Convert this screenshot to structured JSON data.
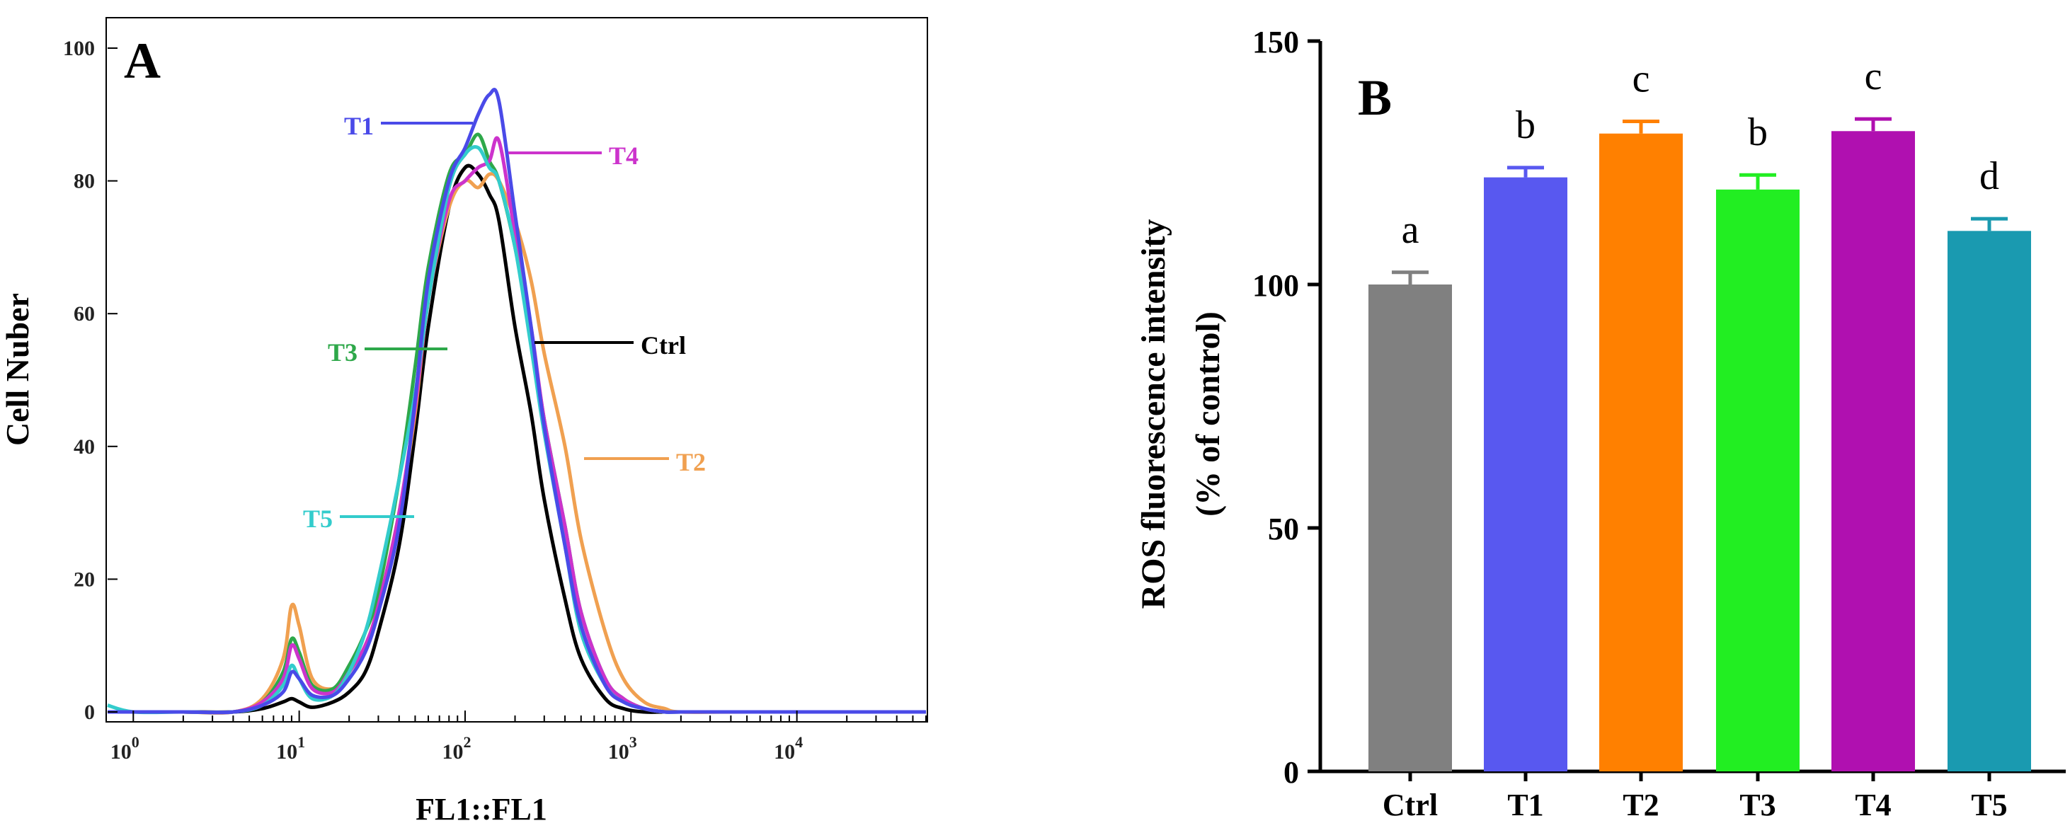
{
  "chart_data": [
    {
      "panel": "A",
      "type": "line",
      "xlabel": "FL1::FL1",
      "ylabel": "Cell Nuber",
      "x_scale": "log",
      "xlim": [
        0.7,
        60000
      ],
      "ylim": [
        0,
        100
      ],
      "x_ticks": [
        {
          "value": 1,
          "base": "10",
          "exp": "0"
        },
        {
          "value": 10,
          "base": "10",
          "exp": "1"
        },
        {
          "value": 100,
          "base": "10",
          "exp": "2"
        },
        {
          "value": 1000,
          "base": "10",
          "exp": "3"
        },
        {
          "value": 10000,
          "base": "10",
          "exp": "4"
        }
      ],
      "y_ticks": [
        {
          "value": 0,
          "label": "0"
        },
        {
          "value": 20,
          "label": "20"
        },
        {
          "value": 40,
          "label": "40"
        },
        {
          "value": 60,
          "label": "60"
        },
        {
          "value": 80,
          "label": "80"
        },
        {
          "value": 100,
          "label": "100"
        }
      ],
      "series": [
        {
          "name": "Ctrl",
          "color": "#000000",
          "x": [
            0.7,
            1,
            2,
            4,
            6,
            8,
            9,
            10,
            12,
            16,
            20,
            25,
            30,
            40,
            50,
            60,
            80,
            100,
            120,
            140,
            160,
            200,
            250,
            300,
            400,
            500,
            700,
            900,
            1200,
            1600,
            2000,
            5000,
            60000
          ],
          "y": [
            0,
            0,
            0,
            0,
            0.5,
            1.5,
            2,
            1.5,
            0.7,
            1.5,
            3,
            6,
            12,
            25,
            42,
            58,
            76,
            82,
            81,
            78,
            74,
            58,
            45,
            32,
            17,
            8,
            2,
            0.5,
            0,
            0,
            0,
            0,
            0
          ]
        },
        {
          "name": "T1",
          "color": "#4a4ae8",
          "x": [
            0.7,
            1,
            2,
            4,
            6,
            8,
            9,
            10,
            12,
            16,
            20,
            25,
            30,
            40,
            50,
            60,
            80,
            100,
            120,
            140,
            160,
            200,
            250,
            300,
            400,
            500,
            700,
            900,
            1200,
            1600,
            2000,
            5000,
            60000
          ],
          "y": [
            0,
            0,
            0,
            0,
            1,
            3,
            6,
            5,
            2.5,
            2.5,
            5,
            9,
            15,
            28,
            47,
            65,
            80,
            85,
            90,
            93,
            92,
            75,
            58,
            43,
            25,
            13,
            4,
            1.5,
            0.5,
            0,
            0,
            0,
            0
          ]
        },
        {
          "name": "T2",
          "color": "#f0a050",
          "x": [
            0.7,
            1,
            2,
            4,
            6,
            8,
            9,
            10,
            12,
            16,
            20,
            25,
            30,
            40,
            50,
            60,
            80,
            100,
            120,
            140,
            160,
            200,
            250,
            300,
            400,
            500,
            700,
            900,
            1200,
            1600,
            2000,
            5000,
            60000
          ],
          "y": [
            0,
            0,
            0,
            0,
            2,
            8,
            16,
            13,
            5,
            3.5,
            6,
            10,
            16,
            30,
            45,
            62,
            76,
            80,
            79,
            81,
            80,
            74,
            65,
            54,
            40,
            26,
            12,
            5,
            1.5,
            0.5,
            0,
            0,
            0
          ]
        },
        {
          "name": "T3",
          "color": "#2ea84a",
          "x": [
            0.7,
            1,
            2,
            4,
            6,
            8,
            9,
            10,
            12,
            16,
            20,
            25,
            30,
            40,
            50,
            60,
            80,
            100,
            120,
            140,
            160,
            200,
            250,
            300,
            400,
            500,
            700,
            900,
            1200,
            1600,
            2000,
            5000,
            60000
          ],
          "y": [
            0,
            0,
            0,
            0,
            1.5,
            6,
            11,
            9,
            4,
            3.5,
            7,
            12,
            18,
            35,
            52,
            67,
            81,
            84,
            87,
            83,
            80,
            70,
            57,
            44,
            28,
            15,
            5,
            2,
            0.5,
            0,
            0,
            0,
            0
          ]
        },
        {
          "name": "T4",
          "color": "#cc33cc",
          "x": [
            0.7,
            1,
            2,
            4,
            6,
            8,
            9,
            10,
            12,
            16,
            20,
            25,
            30,
            40,
            50,
            60,
            80,
            100,
            120,
            140,
            160,
            200,
            250,
            300,
            400,
            500,
            700,
            900,
            1200,
            1600,
            2000,
            5000,
            60000
          ],
          "y": [
            0,
            0,
            0,
            0,
            1.5,
            5,
            10,
            8,
            3.5,
            3,
            6,
            10,
            16,
            30,
            46,
            62,
            77,
            80,
            82,
            83,
            86,
            72,
            58,
            44,
            28,
            15,
            5,
            2,
            0.5,
            0,
            0,
            0,
            0
          ]
        },
        {
          "name": "T5",
          "color": "#33cccc",
          "x": [
            0.7,
            1,
            2,
            4,
            6,
            8,
            9,
            10,
            12,
            16,
            20,
            25,
            30,
            40,
            50,
            60,
            80,
            100,
            120,
            140,
            160,
            200,
            250,
            300,
            400,
            500,
            700,
            900,
            1200,
            1600,
            2000,
            5000,
            60000
          ],
          "y": [
            1,
            0,
            0,
            0,
            1,
            4,
            7,
            5,
            2,
            2.5,
            6,
            12,
            20,
            35,
            48,
            62,
            79,
            84,
            85,
            82,
            80,
            70,
            55,
            42,
            25,
            12,
            4,
            1.5,
            0.5,
            0,
            0,
            0,
            0
          ]
        }
      ],
      "annotations": [
        {
          "label": "T1",
          "series": "T1"
        },
        {
          "label": "T4",
          "series": "T4"
        },
        {
          "label": "T3",
          "series": "T3"
        },
        {
          "label": "Ctrl",
          "series": "Ctrl"
        },
        {
          "label": "T2",
          "series": "T2"
        },
        {
          "label": "T5",
          "series": "T5"
        }
      ]
    },
    {
      "panel": "B",
      "type": "bar",
      "ylabel_line1": "ROS fluorescence intensity",
      "ylabel_line2": "(% of control)",
      "ylim": [
        0,
        150
      ],
      "y_ticks": [
        {
          "value": 0,
          "label": "0"
        },
        {
          "value": 50,
          "label": "50"
        },
        {
          "value": 100,
          "label": "100"
        },
        {
          "value": 150,
          "label": "150"
        }
      ],
      "categories": [
        "Ctrl",
        "T1",
        "T2",
        "T3",
        "T4",
        "T5"
      ],
      "values": [
        100,
        122,
        131,
        119.5,
        131.5,
        111
      ],
      "errors": [
        2.5,
        2,
        2.5,
        3,
        2.5,
        2.5
      ],
      "significance": [
        "a",
        "b",
        "c",
        "b",
        "c",
        "d"
      ],
      "colors": [
        "#808080",
        "#5858f0",
        "#ff8000",
        "#22ee22",
        "#b010b0",
        "#1a9ab0"
      ]
    }
  ]
}
